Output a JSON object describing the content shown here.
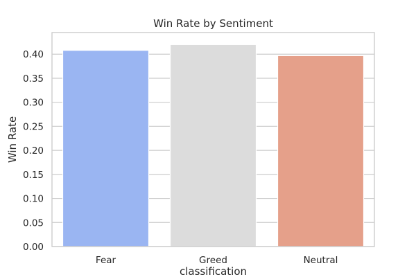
{
  "chart_data": {
    "type": "bar",
    "title": "Win Rate by Sentiment",
    "xlabel": "classification",
    "ylabel": "Win Rate",
    "categories": [
      "Fear",
      "Greed",
      "Neutral"
    ],
    "values": [
      0.408,
      0.42,
      0.397
    ],
    "colors": [
      "#9ab5f2",
      "#dcdcdc",
      "#e5a08a"
    ],
    "ylim": [
      0,
      0.445
    ],
    "yticks": [
      0.0,
      0.05,
      0.1,
      0.15,
      0.2,
      0.25,
      0.3,
      0.35,
      0.4
    ],
    "ytick_labels": [
      "0.00",
      "0.05",
      "0.10",
      "0.15",
      "0.20",
      "0.25",
      "0.30",
      "0.35",
      "0.40"
    ],
    "grid": "horizontal",
    "frame_color": "#cccccc",
    "grid_color": "#cccccc"
  }
}
